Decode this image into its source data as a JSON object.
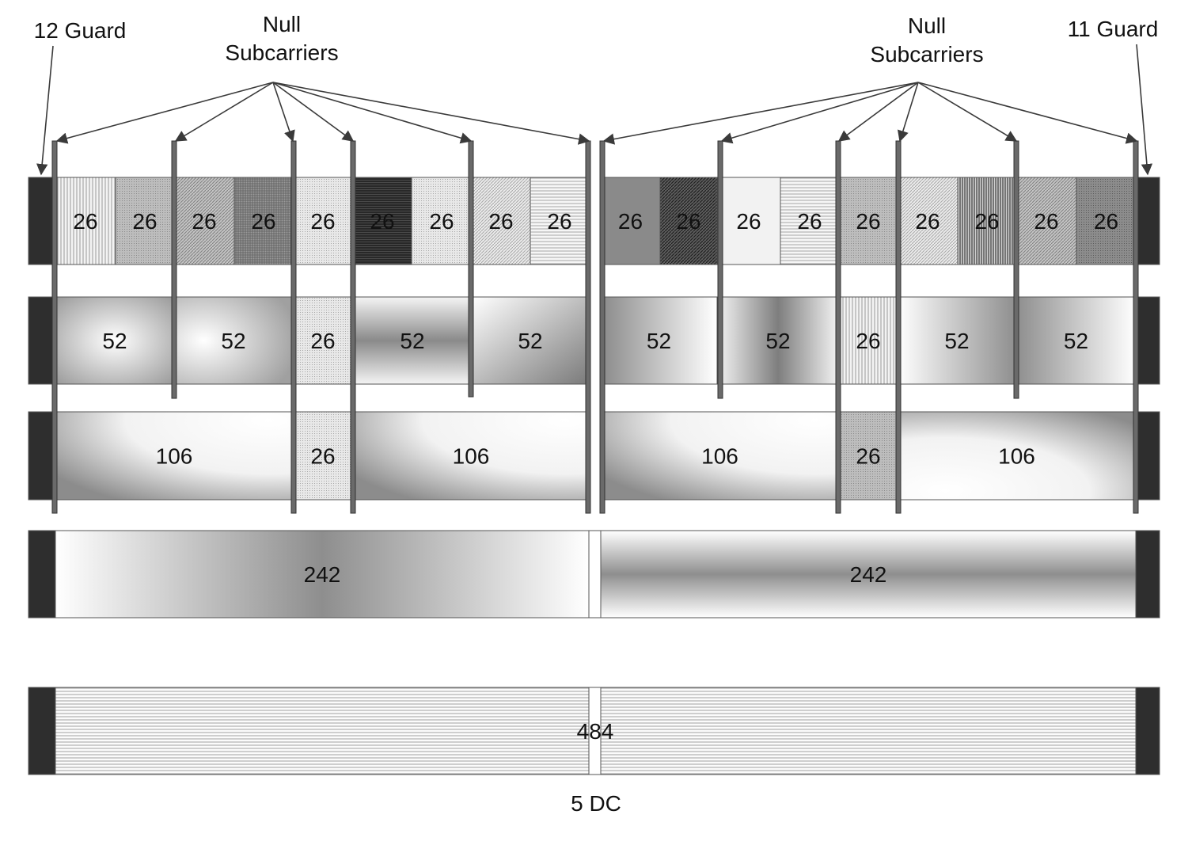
{
  "labels": {
    "left_guard": "12 Guard",
    "right_guard": "11 Guard",
    "null_left_line1": "Null",
    "null_left_line2": "Subcarriers",
    "null_right_line1": "Null",
    "null_right_line2": "Subcarriers",
    "dc": "5 DC"
  },
  "rows": [
    {
      "row": "26-tone",
      "units": [
        {
          "label": "26",
          "fill": "vlines-light",
          "half": "left"
        },
        {
          "label": "26",
          "fill": "dots-gray",
          "half": "left"
        },
        {
          "label": "26",
          "fill": "diag-gray",
          "half": "left"
        },
        {
          "label": "26",
          "fill": "grid-dark",
          "half": "left"
        },
        {
          "label": "26",
          "fill": "dots-light",
          "half": "left"
        },
        {
          "label": "26",
          "fill": "hlines-dark",
          "half": "left"
        },
        {
          "label": "26",
          "fill": "dots-light",
          "half": "left"
        },
        {
          "label": "26",
          "fill": "diag-light",
          "half": "left"
        },
        {
          "label": "26",
          "fill": "hlines-light",
          "half": "left"
        },
        {
          "label": "26",
          "fill": "solid-gray",
          "half": "right"
        },
        {
          "label": "26",
          "fill": "diag-dark",
          "half": "right"
        },
        {
          "label": "26",
          "fill": "solid-light",
          "half": "right"
        },
        {
          "label": "26",
          "fill": "hlines-light",
          "half": "right"
        },
        {
          "label": "26",
          "fill": "dots-gray",
          "half": "right"
        },
        {
          "label": "26",
          "fill": "diag-light",
          "half": "right"
        },
        {
          "label": "26",
          "fill": "vlines-dark",
          "half": "right"
        },
        {
          "label": "26",
          "fill": "diag-gray",
          "half": "right"
        },
        {
          "label": "26",
          "fill": "dots-dark",
          "half": "right"
        }
      ]
    },
    {
      "row": "52-tone",
      "units": [
        {
          "label": "52",
          "fill": "grad-radial-center"
        },
        {
          "label": "52",
          "fill": "grad-radial-left"
        },
        {
          "label": "26",
          "fill": "dots-light"
        },
        {
          "label": "52",
          "fill": "grad-horizontal-band"
        },
        {
          "label": "52",
          "fill": "grad-diag-dark"
        },
        {
          "label": "52",
          "fill": "grad-diag-left"
        },
        {
          "label": "52",
          "fill": "grad-vertical-band"
        },
        {
          "label": "26",
          "fill": "vlines-light"
        },
        {
          "label": "52",
          "fill": "grad-fade-right"
        },
        {
          "label": "52",
          "fill": "grad-fade-left"
        }
      ]
    },
    {
      "row": "106-tone",
      "units": [
        {
          "label": "106",
          "fill": "grad-radial-corner"
        },
        {
          "label": "26",
          "fill": "dots-light"
        },
        {
          "label": "106",
          "fill": "grad-radial-corner"
        },
        {
          "label": "106",
          "fill": "grad-radial-corner"
        },
        {
          "label": "26",
          "fill": "dots-gray"
        },
        {
          "label": "106",
          "fill": "grad-radial-corner-top"
        }
      ]
    },
    {
      "row": "242-tone",
      "units": [
        {
          "label": "242",
          "fill": "grad-horizontal-center"
        },
        {
          "label": "242",
          "fill": "grad-vertical-center"
        }
      ]
    },
    {
      "row": "484-tone",
      "units": [
        {
          "label": "484",
          "fill": "hlines-fine"
        }
      ]
    }
  ],
  "colors": {
    "guard": "#2e2e2e",
    "outline": "#555555",
    "null_bar": "#6a6a6a",
    "arrow": "#3a3a3a"
  }
}
